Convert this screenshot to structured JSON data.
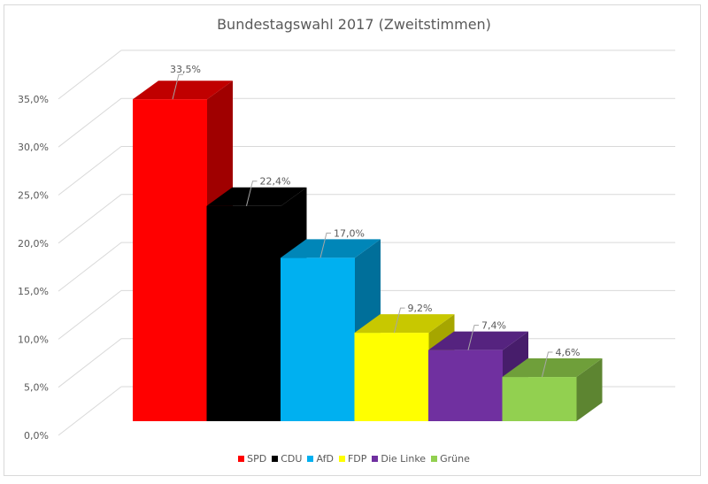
{
  "chart_data": {
    "type": "bar",
    "title": "Bundestagswahl 2017 (Zweitstimmen)",
    "categories": [
      "SPD",
      "CDU",
      "AfD",
      "FDP",
      "Die Linke",
      "Grüne"
    ],
    "values": [
      33.5,
      22.4,
      17.0,
      9.2,
      7.4,
      4.6
    ],
    "data_labels": [
      "33,5%",
      "22,4%",
      "17,0%",
      "9,2%",
      "7,4%",
      "4,6%"
    ],
    "colors": [
      "#ff0000",
      "#000000",
      "#00b0f0",
      "#ffff00",
      "#7030a0",
      "#92d050"
    ],
    "top_colors": [
      "#c00000",
      "#000000",
      "#0086b8",
      "#c8c800",
      "#55237f",
      "#6f9f3a"
    ],
    "side_colors": [
      "#a00000",
      "#000000",
      "#006f9a",
      "#a6a600",
      "#471d6b",
      "#5d8531"
    ],
    "yticks": [
      0,
      5,
      10,
      15,
      20,
      25,
      30,
      35
    ],
    "ytick_labels": [
      "0,0%",
      "5,0%",
      "10,0%",
      "15,0%",
      "20,0%",
      "25,0%",
      "30,0%",
      "35,0%"
    ],
    "ylim": [
      0,
      35
    ],
    "xlabel": "",
    "ylabel": "",
    "grid": true,
    "legend_position": "bottom",
    "style": "3d-column"
  }
}
